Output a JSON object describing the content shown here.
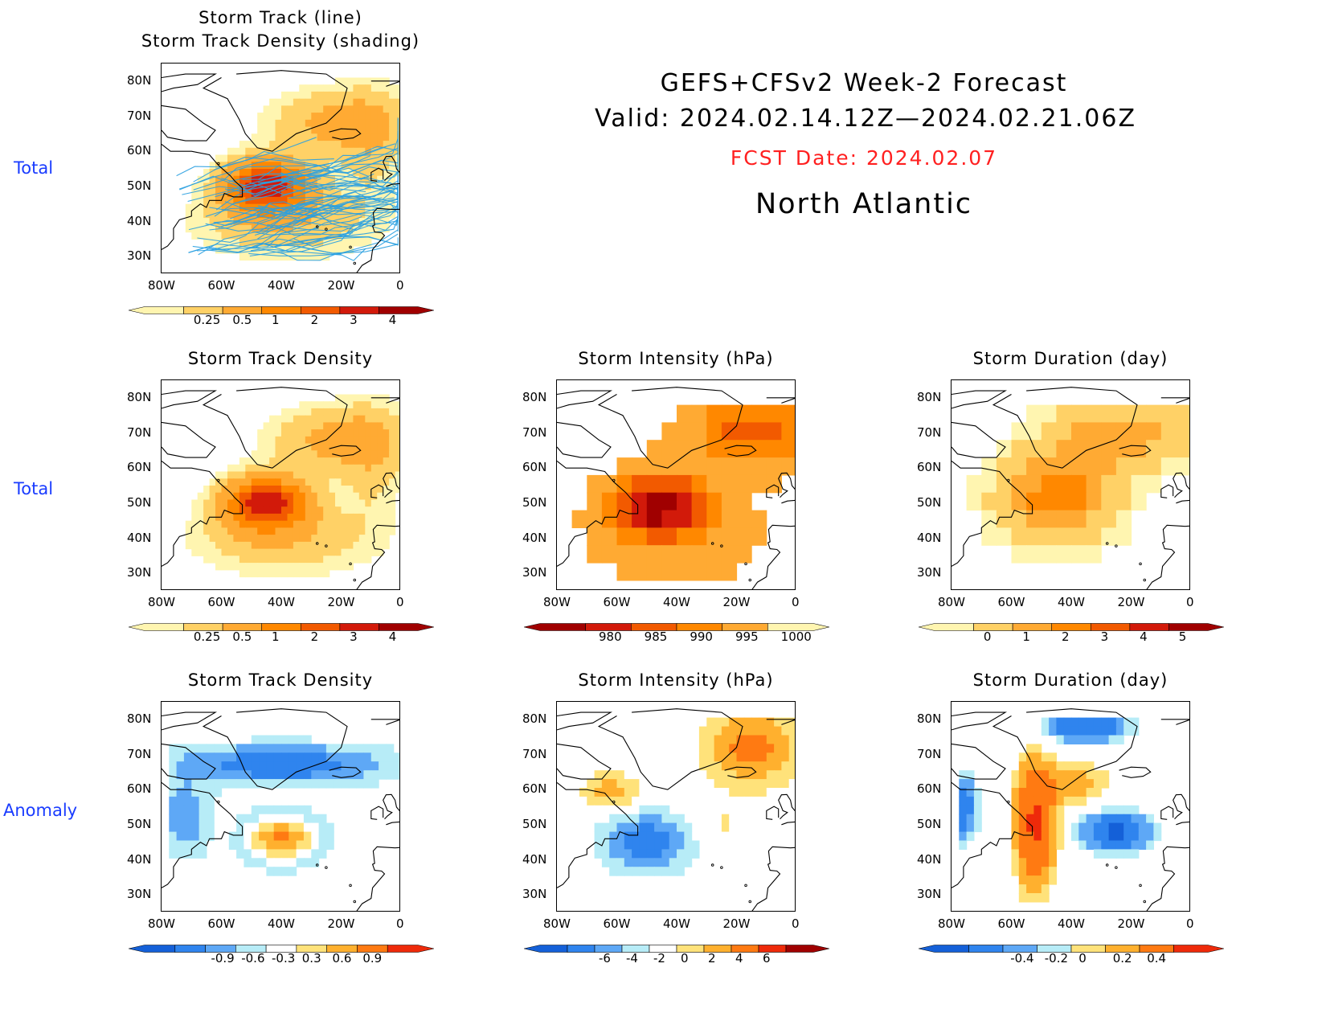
{
  "header": {
    "line1": "GEFS+CFSv2 Week-2 Forecast",
    "line2": "Valid: 2024.02.14.12Z—2024.02.21.06Z",
    "fcst": "FCST Date: 2024.02.07",
    "region": "North Atlantic",
    "fcst_color": "#ff2020"
  },
  "row_labels": [
    "Total",
    "Total",
    "Anomaly"
  ],
  "lat_labels": [
    "80N",
    "70N",
    "60N",
    "50N",
    "40N",
    "30N"
  ],
  "lon_labels": [
    "80W",
    "60W",
    "40W",
    "20W",
    "0"
  ],
  "panels": [
    {
      "title_1": "Storm Track (line)",
      "title_2": "Storm Track Density (shading)",
      "kind": "track_lines"
    },
    {
      "title_1": "Storm Track Density",
      "kind": "density_total"
    },
    {
      "title_1": "Storm Intensity (hPa)",
      "kind": "intensity_total"
    },
    {
      "title_1": "Storm Duration (day)",
      "kind": "duration_total"
    },
    {
      "title_1": "Storm Track Density",
      "kind": "density_anom"
    },
    {
      "title_1": "Storm Intensity (hPa)",
      "kind": "intensity_anom"
    },
    {
      "title_1": "Storm Duration (day)",
      "kind": "duration_anom"
    }
  ],
  "colorbars": {
    "density": {
      "labels": [
        "0.25",
        "0.5",
        "1",
        "2",
        "3",
        "4"
      ],
      "colors": [
        "#fff5b0",
        "#ffd166",
        "#ffaa33",
        "#ff8800",
        "#f25a00",
        "#d21a0a",
        "#a00000"
      ]
    },
    "intensity": {
      "labels": [
        "980",
        "985",
        "990",
        "995",
        "1000"
      ],
      "colors": [
        "#a00000",
        "#d21a0a",
        "#f25a00",
        "#ff8800",
        "#ffaa33",
        "#fff5b0"
      ]
    },
    "duration": {
      "labels": [
        "0",
        "1",
        "2",
        "3",
        "4",
        "5"
      ],
      "colors": [
        "#fff5b0",
        "#ffd166",
        "#ffaa33",
        "#ff8800",
        "#f25a00",
        "#d21a0a",
        "#a00000"
      ]
    },
    "density_anom": {
      "labels": [
        "-0.9",
        "-0.6",
        "-0.3",
        "0.3",
        "0.6",
        "0.9"
      ],
      "colors": [
        "#1460d8",
        "#2f84ee",
        "#5ea8f6",
        "#b7ecf7",
        "#ffffff",
        "#ffe27a",
        "#ffb02e",
        "#ff7a12",
        "#ee2a0a"
      ]
    },
    "intensity_anom": {
      "labels": [
        "-6",
        "-4",
        "-2",
        "0",
        "2",
        "4",
        "6"
      ],
      "colors": [
        "#1460d8",
        "#2f84ee",
        "#5ea8f6",
        "#b7ecf7",
        "#ffffff",
        "#ffe27a",
        "#ffb02e",
        "#ff7a12",
        "#ee2a0a",
        "#a00000"
      ]
    },
    "duration_anom": {
      "labels": [
        "-0.4",
        "-0.2",
        "0",
        "0.2",
        "0.4"
      ],
      "colors": [
        "#1460d8",
        "#2f84ee",
        "#5ea8f6",
        "#b7ecf7",
        "#ffe27a",
        "#ffb02e",
        "#ff7a12",
        "#ee2a0a"
      ]
    }
  },
  "palette": {
    "track_line": "#2aa0e0",
    "land_outline": "#000000"
  }
}
